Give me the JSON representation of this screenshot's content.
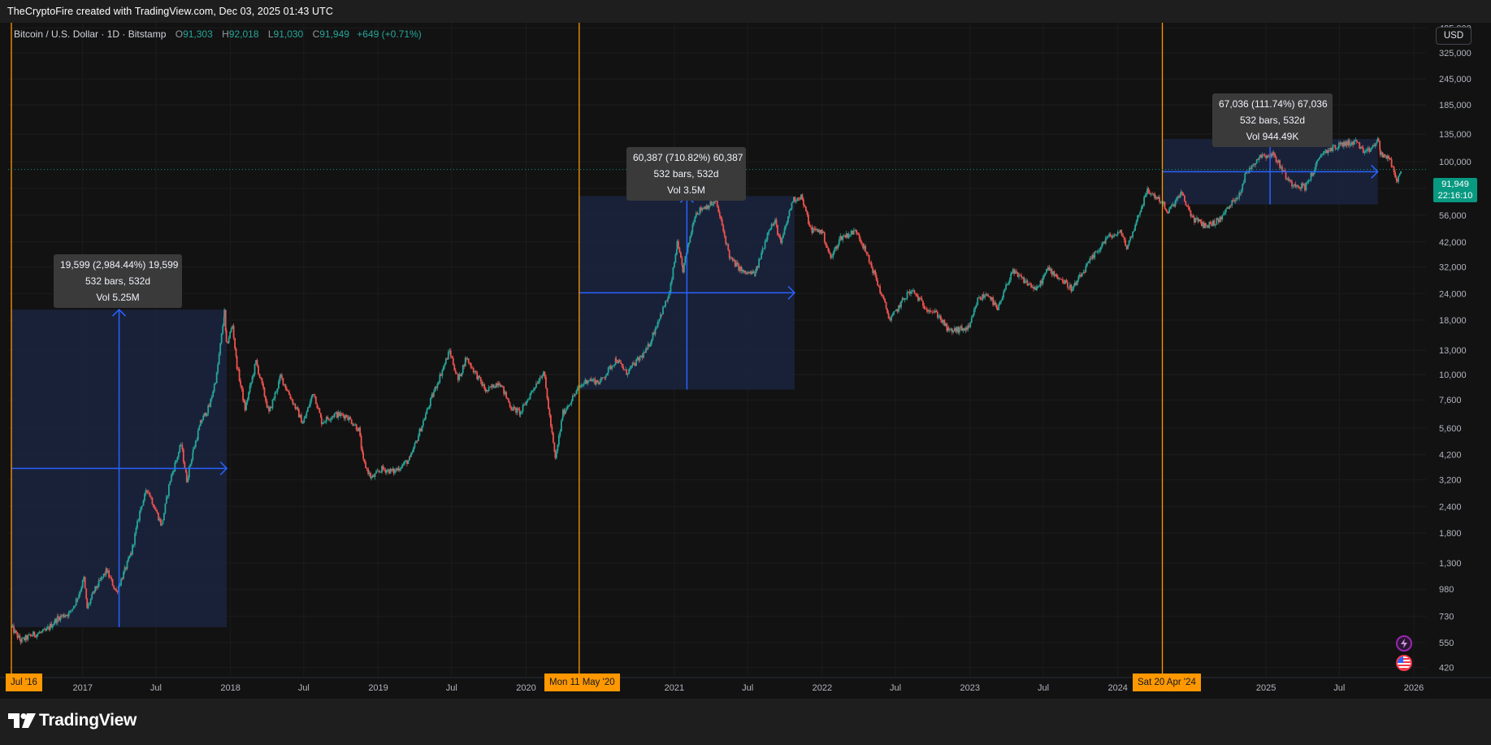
{
  "header": {
    "credit": "TheCryptoFire created with TradingView.com, Dec 03, 2025 01:43 UTC"
  },
  "legend": {
    "symbol": "Bitcoin / U.S. Dollar · 1D · Bitstamp",
    "open_label": "O",
    "open": "91,303",
    "high_label": "H",
    "high": "92,018",
    "low_label": "L",
    "low": "91,030",
    "close_label": "C",
    "close": "91,949",
    "change": "+649 (+0.71%)"
  },
  "currency_button": "USD",
  "price_label": {
    "price": "91,949",
    "countdown": "22:16:10"
  },
  "footer": {
    "brand": "TradingView"
  },
  "colors": {
    "background": "#121212",
    "up": "#26a69a",
    "down": "#ef5350",
    "range_fill": "#1b2440",
    "range_arrow": "#2962ff",
    "vertical_line": "#ff9800",
    "last_price": "#089981"
  },
  "icons": [
    "lightning-badge-icon",
    "us-flag-icon",
    "tradingview-logo-icon"
  ],
  "chart_data": {
    "type": "candlestick",
    "title": "Bitcoin / U.S. Dollar · 1D · Bitstamp",
    "y_scale": "log",
    "ylim": [
      380,
      450000
    ],
    "xlim": [
      "2016-07-01",
      "2026-01-31"
    ],
    "x_ticks": [
      "Jul '16",
      "2017",
      "Jul",
      "2018",
      "Jul",
      "2019",
      "Jul",
      "2020",
      "Mon 11 May '20",
      "2021",
      "Jul",
      "2022",
      "Jul",
      "2023",
      "Jul",
      "2024",
      "Sat 20 Apr '24",
      "2025",
      "Jul",
      "2026"
    ],
    "y_ticks": [
      "425,000",
      "325,000",
      "245,000",
      "185,000",
      "135,000",
      "100,000",
      "75,000",
      "56,000",
      "42,000",
      "32,000",
      "24,000",
      "18,000",
      "13,000",
      "10,000",
      "7,600",
      "5,600",
      "4,200",
      "3,200",
      "2,400",
      "1,800",
      "1,300",
      "980",
      "730",
      "550",
      "420"
    ],
    "last_price": 91949,
    "series": [
      {
        "points": [
          [
            "2016-07-09",
            650
          ],
          [
            "2016-08-01",
            560
          ],
          [
            "2016-09-01",
            600
          ],
          [
            "2016-10-01",
            620
          ],
          [
            "2016-11-01",
            720
          ],
          [
            "2016-12-01",
            760
          ],
          [
            "2016-12-20",
            900
          ],
          [
            "2017-01-04",
            1100
          ],
          [
            "2017-01-12",
            800
          ],
          [
            "2017-02-01",
            980
          ],
          [
            "2017-03-01",
            1200
          ],
          [
            "2017-03-25",
            950
          ],
          [
            "2017-04-15",
            1200
          ],
          [
            "2017-05-01",
            1450
          ],
          [
            "2017-05-25",
            2400
          ],
          [
            "2017-06-10",
            2900
          ],
          [
            "2017-07-15",
            1950
          ],
          [
            "2017-08-05",
            3200
          ],
          [
            "2017-09-01",
            4700
          ],
          [
            "2017-09-15",
            3200
          ],
          [
            "2017-10-01",
            4400
          ],
          [
            "2017-10-20",
            6000
          ],
          [
            "2017-11-10",
            7100
          ],
          [
            "2017-11-28",
            10000
          ],
          [
            "2017-12-17",
            19599
          ],
          [
            "2017-12-22",
            13800
          ],
          [
            "2018-01-06",
            17000
          ],
          [
            "2018-01-17",
            11000
          ],
          [
            "2018-02-06",
            6900
          ],
          [
            "2018-03-05",
            11500
          ],
          [
            "2018-04-06",
            6600
          ],
          [
            "2018-05-05",
            9800
          ],
          [
            "2018-06-29",
            5900
          ],
          [
            "2018-07-25",
            8300
          ],
          [
            "2018-08-14",
            6000
          ],
          [
            "2018-09-15",
            6500
          ],
          [
            "2018-10-15",
            6400
          ],
          [
            "2018-11-14",
            5500
          ],
          [
            "2018-11-25",
            3900
          ],
          [
            "2018-12-15",
            3250
          ],
          [
            "2019-01-10",
            3600
          ],
          [
            "2019-02-08",
            3500
          ],
          [
            "2019-03-20",
            4000
          ],
          [
            "2019-04-10",
            5200
          ],
          [
            "2019-05-15",
            8000
          ],
          [
            "2019-06-26",
            12900
          ],
          [
            "2019-07-17",
            9400
          ],
          [
            "2019-08-06",
            12000
          ],
          [
            "2019-09-25",
            8300
          ],
          [
            "2019-10-26",
            9300
          ],
          [
            "2019-11-25",
            7000
          ],
          [
            "2019-12-18",
            6600
          ],
          [
            "2020-01-20",
            8700
          ],
          [
            "2020-02-13",
            10400
          ],
          [
            "2020-03-13",
            4000
          ],
          [
            "2020-04-01",
            6600
          ],
          [
            "2020-05-11",
            8700
          ],
          [
            "2020-06-01",
            9500
          ],
          [
            "2020-07-01",
            9200
          ],
          [
            "2020-08-10",
            11800
          ],
          [
            "2020-09-05",
            10200
          ],
          [
            "2020-10-25",
            13000
          ],
          [
            "2020-11-25",
            18500
          ],
          [
            "2020-12-20",
            24000
          ],
          [
            "2021-01-08",
            41000
          ],
          [
            "2021-01-22",
            31000
          ],
          [
            "2021-02-21",
            57000
          ],
          [
            "2021-03-13",
            61000
          ],
          [
            "2021-04-14",
            64800
          ],
          [
            "2021-05-19",
            35000
          ],
          [
            "2021-06-22",
            30000
          ],
          [
            "2021-07-20",
            29800
          ],
          [
            "2021-08-23",
            49000
          ],
          [
            "2021-09-07",
            52000
          ],
          [
            "2021-09-21",
            41000
          ],
          [
            "2021-10-20",
            66000
          ],
          [
            "2021-11-10",
            69000
          ],
          [
            "2021-12-04",
            48000
          ],
          [
            "2022-01-01",
            47000
          ],
          [
            "2022-01-22",
            35000
          ],
          [
            "2022-02-15",
            44000
          ],
          [
            "2022-03-28",
            47500
          ],
          [
            "2022-05-09",
            30000
          ],
          [
            "2022-06-18",
            18000
          ],
          [
            "2022-07-30",
            24000
          ],
          [
            "2022-08-14",
            24500
          ],
          [
            "2022-09-10",
            21000
          ],
          [
            "2022-10-15",
            19000
          ],
          [
            "2022-11-09",
            16000
          ],
          [
            "2022-12-30",
            16500
          ],
          [
            "2023-01-20",
            22500
          ],
          [
            "2023-02-15",
            24000
          ],
          [
            "2023-03-10",
            20000
          ],
          [
            "2023-04-14",
            30500
          ],
          [
            "2023-06-15",
            25000
          ],
          [
            "2023-07-13",
            31500
          ],
          [
            "2023-09-11",
            25200
          ],
          [
            "2023-10-24",
            34000
          ],
          [
            "2023-12-05",
            44000
          ],
          [
            "2024-01-11",
            46500
          ],
          [
            "2024-01-23",
            39000
          ],
          [
            "2024-02-29",
            62000
          ],
          [
            "2024-03-14",
            73000
          ],
          [
            "2024-04-20",
            64900
          ],
          [
            "2024-05-01",
            57000
          ],
          [
            "2024-06-05",
            71000
          ],
          [
            "2024-07-05",
            54000
          ],
          [
            "2024-08-05",
            50000
          ],
          [
            "2024-09-06",
            53000
          ],
          [
            "2024-10-29",
            72000
          ],
          [
            "2024-11-12",
            88000
          ],
          [
            "2024-12-17",
            107000
          ],
          [
            "2025-01-20",
            108000
          ],
          [
            "2025-02-28",
            80000
          ],
          [
            "2025-04-07",
            76000
          ],
          [
            "2025-05-22",
            111000
          ],
          [
            "2025-07-14",
            122000
          ],
          [
            "2025-08-14",
            124000
          ],
          [
            "2025-09-01",
            108000
          ],
          [
            "2025-10-06",
            126000
          ],
          [
            "2025-10-10",
            110000
          ],
          [
            "2025-11-04",
            101000
          ],
          [
            "2025-11-21",
            81000
          ],
          [
            "2025-12-03",
            91949
          ]
        ]
      }
    ],
    "vertical_markers": [
      {
        "date": "2016-07-09",
        "label": "Jul '16"
      },
      {
        "date": "2020-05-11",
        "label": "Mon 11 May '20"
      },
      {
        "date": "2024-04-20",
        "label": "Sat 20 Apr '24"
      }
    ],
    "ranges": [
      {
        "start": "2016-07-09",
        "end": "2017-12-23",
        "low": 650,
        "high": 20200,
        "summary": [
          "19,599 (2,984.44%) 19,599",
          "532 bars, 532d",
          "Vol 5.25M"
        ]
      },
      {
        "start": "2020-05-11",
        "end": "2021-10-25",
        "low": 8500,
        "high": 69000,
        "summary": [
          "60,387 (710.82%) 60,387",
          "532 bars, 532d",
          "Vol 3.5M"
        ]
      },
      {
        "start": "2024-04-20",
        "end": "2025-10-04",
        "low": 63000,
        "high": 128000,
        "summary": [
          "67,036 (111.74%) 67,036",
          "532 bars, 532d",
          "Vol 944.49K"
        ]
      }
    ]
  }
}
